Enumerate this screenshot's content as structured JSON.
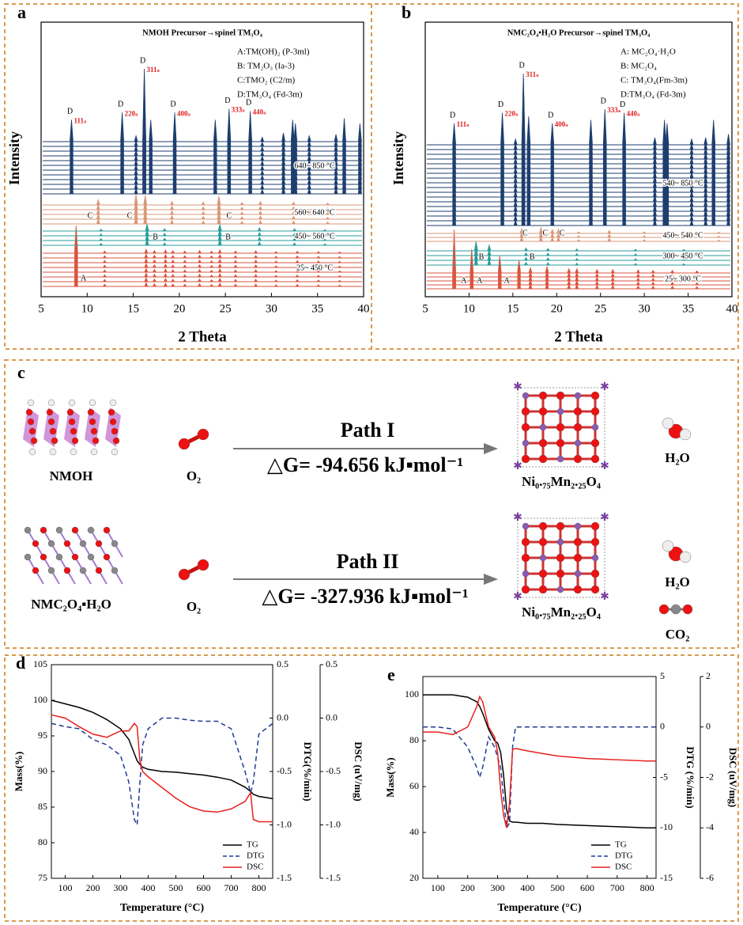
{
  "chart_data": [
    {
      "type": "xrd",
      "panel_label": "a",
      "title": "NMOH Precursor→spinel TM₃O₄",
      "xlabel": "2 Theta",
      "ylabel": "Intensity",
      "xlim": [
        5,
        40
      ],
      "xticks": [
        5,
        10,
        15,
        20,
        25,
        30,
        35,
        40
      ],
      "legend": [
        "A:TM(OH)₂ (P-3ml)",
        "B: TM₂O₃ (Ia-3)",
        "C:TMO₂ (C2/m)",
        "D:TM₃O₄ (Fd-3m)"
      ],
      "peak_labels": [
        {
          "phase": "D",
          "hkl": "111ₛ",
          "x": 8.3
        },
        {
          "phase": "D",
          "hkl": "220ₛ",
          "x": 13.8
        },
        {
          "phase": "D",
          "hkl": "311ₛ",
          "x": 16.2
        },
        {
          "phase": "D",
          "hkl": "400ₛ",
          "x": 19.5
        },
        {
          "phase": "D",
          "hkl": "333ₛ",
          "x": 25.4
        },
        {
          "phase": "D",
          "hkl": "440ₛ",
          "x": 27.7
        }
      ],
      "series": [
        {
          "name": "25~ 450 °C",
          "color": "#d8543f",
          "x": [
            8.8,
            11.9,
            16.4,
            17.3,
            18.5,
            19.3,
            20.6,
            22.2,
            23.5,
            24.4,
            26.1,
            28.3,
            30.5,
            32.8,
            35.1,
            37.4
          ],
          "values": [
            100,
            8,
            14,
            10,
            12,
            9,
            8,
            10,
            7,
            12,
            8,
            9,
            6,
            7,
            6,
            5
          ],
          "labels": [
            {
              "text": "A",
              "x": 9.6
            }
          ]
        },
        {
          "name": "450~ 560 °C",
          "color": "#2a9c9a",
          "x": [
            11.5,
            16.5,
            18.4,
            24.4,
            28.7,
            32.5,
            35.8
          ],
          "values": [
            8,
            30,
            10,
            28,
            14,
            10,
            6
          ],
          "labels": [
            {
              "text": "B",
              "x": 17.4
            },
            {
              "text": "B",
              "x": 25.3
            }
          ]
        },
        {
          "name": "560~ 640 °C",
          "color": "#d99779",
          "x": [
            11.2,
            15.3,
            16.3,
            19.2,
            22.6,
            24.3,
            26.8,
            28.8,
            32.4,
            36.1
          ],
          "values": [
            22,
            45,
            40,
            15,
            12,
            38,
            10,
            14,
            12,
            8
          ],
          "labels": [
            {
              "text": "C",
              "x": 10.3
            },
            {
              "text": "C",
              "x": 14.6
            },
            {
              "text": "C",
              "x": 25.4
            }
          ]
        },
        {
          "name": "640~ 850 °C",
          "color": "#1d3e6e",
          "x": [
            8.3,
            13.8,
            15.3,
            16.2,
            16.9,
            19.5,
            23.9,
            25.4,
            27.7,
            29.0,
            31.3,
            32.3,
            32.6,
            34.1,
            37.0,
            37.9,
            39.6
          ],
          "values": [
            30,
            40,
            8,
            100,
            30,
            40,
            30,
            45,
            42,
            6,
            12,
            30,
            25,
            8,
            10,
            32,
            25
          ],
          "labels": []
        }
      ]
    },
    {
      "type": "xrd",
      "panel_label": "b",
      "title": "NMC₂O₄•H₂O Precursor→spinel TM₃O₄",
      "xlabel": "2 Theta",
      "ylabel": "Intensity",
      "xlim": [
        5,
        40
      ],
      "xticks": [
        5,
        10,
        15,
        20,
        25,
        30,
        35,
        40
      ],
      "legend": [
        "A: MC₂O₄·H₂O",
        "B: MC₂O₄",
        "C: TM₃O₄(Fm-3m)",
        "D:TM₃O₄ (Fd-3m)"
      ],
      "peak_labels": [
        {
          "phase": "D",
          "hkl": "111ₛ",
          "x": 8.3
        },
        {
          "phase": "D",
          "hkl": "220ₛ",
          "x": 13.8
        },
        {
          "phase": "D",
          "hkl": "311ₛ",
          "x": 16.2
        },
        {
          "phase": "D",
          "hkl": "400ₛ",
          "x": 19.5
        },
        {
          "phase": "D",
          "hkl": "333ₛ",
          "x": 25.5
        },
        {
          "phase": "D",
          "hkl": "440ₛ",
          "x": 27.7
        }
      ],
      "series": [
        {
          "name": "25~ 300 °C",
          "color": "#d8543f",
          "x": [
            8.3,
            10.3,
            13.5,
            15.7,
            17.0,
            18.9,
            21.4,
            22.3,
            24.6,
            26.4,
            29.3,
            31.0,
            33.2,
            36.0
          ],
          "values": [
            100,
            55,
            40,
            30,
            12,
            15,
            10,
            10,
            8,
            8,
            7,
            6,
            6,
            5
          ],
          "labels": [
            {
              "text": "A",
              "x": 9.4
            },
            {
              "text": "A",
              "x": 11.2
            },
            {
              "text": "A",
              "x": 14.3
            }
          ]
        },
        {
          "name": "300~ 450 °C",
          "color": "#2a9c9a",
          "x": [
            10.8,
            12.3,
            16.5,
            19.0,
            22.3,
            29.0,
            34.5
          ],
          "values": [
            40,
            25,
            12,
            10,
            8,
            7,
            6
          ],
          "labels": [
            {
              "text": "B",
              "x": 11.4
            },
            {
              "text": "B",
              "x": 17.2
            }
          ]
        },
        {
          "name": "450~ 540 °C",
          "color": "#d99779",
          "x": [
            16.0,
            18.2,
            19.5,
            20.2,
            22.5,
            26.0,
            30.0,
            38.5
          ],
          "values": [
            25,
            30,
            20,
            22,
            8,
            15,
            8,
            6
          ],
          "labels": [
            {
              "text": "C",
              "x": 16.4
            },
            {
              "text": "C",
              "x": 18.7
            },
            {
              "text": "C",
              "x": 20.6
            }
          ]
        },
        {
          "name": "540~ 850 °C",
          "color": "#1d3e6e",
          "x": [
            8.3,
            13.8,
            15.3,
            16.2,
            16.8,
            19.5,
            23.9,
            25.5,
            27.7,
            31.2,
            32.3,
            32.6,
            35.4,
            37.0,
            37.9,
            39.6
          ],
          "values": [
            30,
            45,
            8,
            100,
            40,
            30,
            35,
            50,
            45,
            10,
            35,
            30,
            8,
            10,
            35,
            15
          ],
          "labels": []
        }
      ]
    },
    {
      "type": "line",
      "panel_label": "d",
      "xlabel": "Temperature (°C)",
      "ylabel": "Mass(%)",
      "y2label": "DTG(%/min)",
      "y3label": "DSC (uV/mg)",
      "xlim": [
        50,
        850
      ],
      "xticks": [
        100,
        200,
        300,
        400,
        500,
        600,
        700,
        800
      ],
      "ylim": [
        75,
        105
      ],
      "yticks": [
        75,
        80,
        85,
        90,
        95,
        100,
        105
      ],
      "y2lim": [
        -1.5,
        0.5
      ],
      "y2ticks": [
        -1.5,
        {
          "value": -1,
          "label": "-1.0"
        },
        -0.5,
        {
          "value": 0,
          "label": "0.0"
        },
        0.5
      ],
      "y3lim": [
        -1.5,
        0.5
      ],
      "y3ticks": [
        -1.5,
        {
          "value": -1,
          "label": "-1.0"
        },
        -0.5,
        {
          "value": 0,
          "label": "0.0"
        },
        0.5
      ],
      "x": [
        50,
        100,
        150,
        200,
        250,
        300,
        330,
        350,
        360,
        370,
        380,
        400,
        450,
        500,
        550,
        600,
        650,
        700,
        750,
        770,
        780,
        800,
        850
      ],
      "series": [
        {
          "name": "TG",
          "color": "#000000",
          "axis": "y",
          "values": [
            100,
            99.5,
            99,
            98.3,
            97.3,
            96,
            94.5,
            92.5,
            91.5,
            91,
            90.6,
            90.3,
            90,
            89.9,
            89.7,
            89.5,
            89.2,
            88.8,
            87.8,
            87.2,
            86.8,
            86.5,
            86.2
          ]
        },
        {
          "name": "DTG",
          "color": "#1f3a93",
          "axis": "y2",
          "dash": true,
          "values": [
            -0.05,
            -0.08,
            -0.1,
            -0.2,
            -0.25,
            -0.35,
            -0.6,
            -0.95,
            -1.0,
            -0.6,
            -0.25,
            -0.1,
            0,
            0,
            -0.02,
            -0.03,
            -0.03,
            -0.1,
            -0.5,
            -0.7,
            -0.6,
            -0.15,
            -0.05
          ]
        },
        {
          "name": "DSC",
          "color": "#e8201e",
          "axis": "y3",
          "values": [
            0.03,
            0,
            -0.08,
            -0.15,
            -0.18,
            -0.12,
            -0.12,
            -0.05,
            -0.08,
            -0.4,
            -0.5,
            -0.55,
            -0.65,
            -0.75,
            -0.83,
            -0.87,
            -0.88,
            -0.85,
            -0.78,
            -0.7,
            -0.95,
            -0.97,
            -0.97
          ]
        }
      ]
    },
    {
      "type": "line",
      "panel_label": "e",
      "xlabel": "Temperature (°C)",
      "ylabel": "Mass(%)",
      "y2label": "DTG (%/min)",
      "y3label": "DSC (uV/mg)",
      "xlim": [
        50,
        830
      ],
      "xticks": [
        100,
        200,
        300,
        400,
        500,
        600,
        700,
        800
      ],
      "ylim": [
        20,
        108
      ],
      "yticks": [
        20,
        40,
        60,
        80,
        100
      ],
      "y2lim": [
        -15,
        5
      ],
      "y2ticks": [
        -15,
        -10,
        -5,
        0,
        5
      ],
      "y3lim": [
        -6,
        2
      ],
      "y3ticks": [
        -6,
        -4,
        -2,
        0,
        2
      ],
      "x": [
        50,
        100,
        150,
        200,
        230,
        240,
        250,
        270,
        290,
        300,
        310,
        320,
        330,
        340,
        350,
        360,
        400,
        450,
        500,
        600,
        700,
        800,
        830
      ],
      "series": [
        {
          "name": "TG",
          "color": "#000000",
          "axis": "y",
          "values": [
            100,
            100,
            100,
            99,
            97,
            95,
            92,
            85,
            80,
            79,
            75,
            65,
            50,
            45,
            44.5,
            44.5,
            44,
            44,
            43.5,
            43,
            42.5,
            42,
            42
          ]
        },
        {
          "name": "DTG",
          "color": "#1f3a93",
          "axis": "y2",
          "dash": true,
          "values": [
            0,
            0,
            -0.2,
            -2,
            -4,
            -5,
            -4,
            -1,
            -2,
            -3,
            -4,
            -7,
            -10,
            -9.5,
            -2,
            0,
            0,
            0,
            0,
            0,
            0,
            0,
            0
          ]
        },
        {
          "name": "DSC",
          "color": "#e8201e",
          "axis": "y3",
          "values": [
            -0.2,
            -0.2,
            -0.3,
            0,
            0.8,
            1.2,
            1,
            0,
            -0.4,
            -1,
            -2.5,
            -3.5,
            -4,
            -3,
            -0.9,
            -0.85,
            -0.95,
            -1.05,
            -1.15,
            -1.25,
            -1.3,
            -1.35,
            -1.35
          ]
        }
      ]
    }
  ],
  "diagram": {
    "panel_label": "c",
    "rows": [
      {
        "reactant": "NMOH",
        "oxidant": "O₂",
        "path": "Path I",
        "delta_g": "△G= -94.656 kJ▪mol⁻¹",
        "product": "Ni₀.₇₅Mn₂.₂₅O₄",
        "byproducts": [
          "H₂O"
        ]
      },
      {
        "reactant": "NMC₂O₄▪H₂O",
        "oxidant": "O₂",
        "path": "Path II",
        "delta_g": "△G= -327.936 kJ▪mol⁻¹",
        "product": "Ni₀.₇₅Mn₂.₂₅O₄",
        "byproducts": [
          "H₂O",
          "CO₂"
        ]
      }
    ]
  }
}
